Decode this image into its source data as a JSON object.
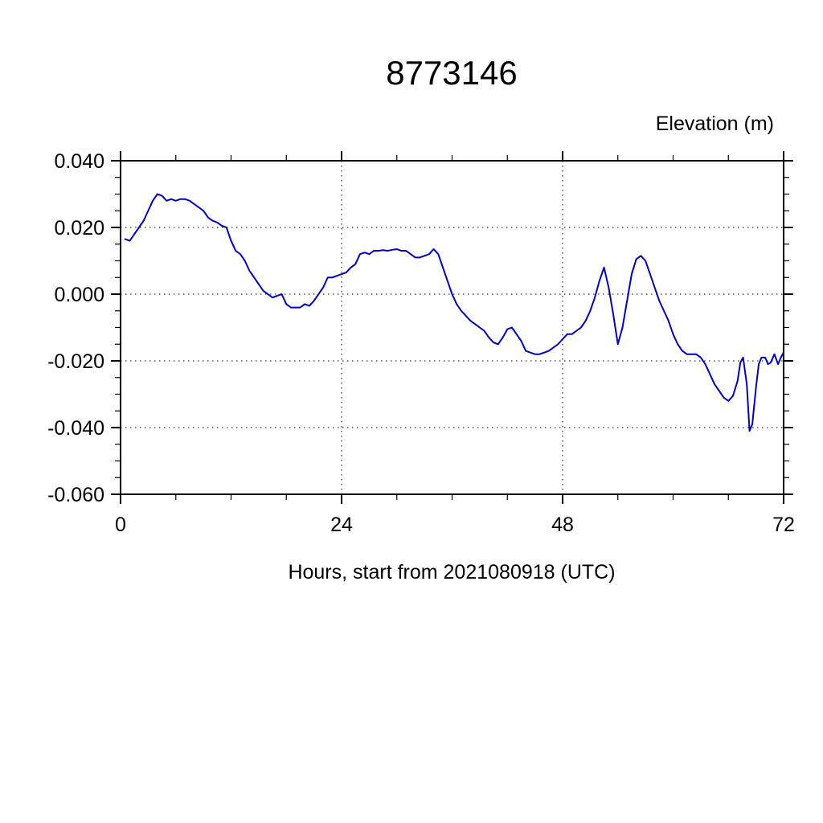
{
  "chart_data": {
    "type": "line",
    "title": "8773146",
    "ylabel": "Elevation (m)",
    "xlabel": "Hours, start from 2021080918 (UTC)",
    "xlim": [
      0,
      72
    ],
    "ylim": [
      -0.06,
      0.04
    ],
    "x_ticks": [
      0,
      24,
      48,
      72
    ],
    "x_tick_labels": [
      "0",
      "24",
      "48",
      "72"
    ],
    "y_ticks": [
      0.04,
      0.02,
      0.0,
      -0.02,
      -0.04,
      -0.06
    ],
    "y_tick_labels": [
      "0.040",
      "0.020",
      "0.000",
      "-0.020",
      "-0.040",
      "-0.060"
    ],
    "x_minor_step": 6,
    "y_minor_step": 0.005,
    "grid_x": [
      24,
      48
    ],
    "grid_y": [
      0.02,
      0.0,
      -0.02,
      -0.04
    ],
    "grid_on": true,
    "legend": "none",
    "line_color": "#0000bb",
    "series": [
      {
        "name": "elevation",
        "points": [
          [
            0.5,
            0.0165
          ],
          [
            1,
            0.016
          ],
          [
            1.5,
            0.018
          ],
          [
            2,
            0.02
          ],
          [
            2.5,
            0.022
          ],
          [
            3,
            0.025
          ],
          [
            3.5,
            0.028
          ],
          [
            4,
            0.03
          ],
          [
            4.5,
            0.0295
          ],
          [
            5,
            0.028
          ],
          [
            5.5,
            0.0285
          ],
          [
            6,
            0.028
          ],
          [
            6.5,
            0.0285
          ],
          [
            7,
            0.0285
          ],
          [
            7.5,
            0.028
          ],
          [
            8,
            0.027
          ],
          [
            8.5,
            0.026
          ],
          [
            9,
            0.025
          ],
          [
            9.5,
            0.023
          ],
          [
            10,
            0.022
          ],
          [
            10.5,
            0.0215
          ],
          [
            11,
            0.0205
          ],
          [
            11.5,
            0.02
          ],
          [
            12,
            0.016
          ],
          [
            12.5,
            0.013
          ],
          [
            13,
            0.012
          ],
          [
            13.5,
            0.01
          ],
          [
            14,
            0.007
          ],
          [
            14.5,
            0.005
          ],
          [
            15,
            0.003
          ],
          [
            15.5,
            0.001
          ],
          [
            16,
            0.0
          ],
          [
            16.5,
            -0.001
          ],
          [
            17,
            -0.0005
          ],
          [
            17.5,
            0.0
          ],
          [
            18,
            -0.003
          ],
          [
            18.5,
            -0.004
          ],
          [
            19,
            -0.004
          ],
          [
            19.5,
            -0.004
          ],
          [
            20,
            -0.003
          ],
          [
            20.5,
            -0.0035
          ],
          [
            21,
            -0.002
          ],
          [
            21.5,
            0.0
          ],
          [
            22,
            0.002
          ],
          [
            22.5,
            0.005
          ],
          [
            23,
            0.005
          ],
          [
            23.5,
            0.0055
          ],
          [
            24,
            0.006
          ],
          [
            24.5,
            0.0065
          ],
          [
            25,
            0.008
          ],
          [
            25.5,
            0.009
          ],
          [
            26,
            0.012
          ],
          [
            26.5,
            0.0125
          ],
          [
            27,
            0.012
          ],
          [
            27.5,
            0.013
          ],
          [
            28,
            0.013
          ],
          [
            28.5,
            0.0132
          ],
          [
            29,
            0.013
          ],
          [
            29.5,
            0.0133
          ],
          [
            30,
            0.0135
          ],
          [
            30.5,
            0.013
          ],
          [
            31,
            0.013
          ],
          [
            31.5,
            0.012
          ],
          [
            32,
            0.011
          ],
          [
            32.5,
            0.011
          ],
          [
            33,
            0.0115
          ],
          [
            33.5,
            0.012
          ],
          [
            34,
            0.0135
          ],
          [
            34.5,
            0.012
          ],
          [
            35,
            0.008
          ],
          [
            35.5,
            0.004
          ],
          [
            36,
            0.0
          ],
          [
            36.5,
            -0.003
          ],
          [
            37,
            -0.005
          ],
          [
            37.5,
            -0.0065
          ],
          [
            38,
            -0.008
          ],
          [
            38.5,
            -0.009
          ],
          [
            39,
            -0.01
          ],
          [
            39.5,
            -0.011
          ],
          [
            40,
            -0.013
          ],
          [
            40.5,
            -0.0145
          ],
          [
            41,
            -0.015
          ],
          [
            41.5,
            -0.013
          ],
          [
            42,
            -0.0105
          ],
          [
            42.5,
            -0.01
          ],
          [
            43,
            -0.012
          ],
          [
            43.5,
            -0.014
          ],
          [
            44,
            -0.017
          ],
          [
            44.5,
            -0.0175
          ],
          [
            45,
            -0.018
          ],
          [
            45.5,
            -0.018
          ],
          [
            46,
            -0.0175
          ],
          [
            46.5,
            -0.017
          ],
          [
            47,
            -0.016
          ],
          [
            47.5,
            -0.015
          ],
          [
            48,
            -0.0135
          ],
          [
            48.5,
            -0.012
          ],
          [
            49,
            -0.012
          ],
          [
            49.5,
            -0.011
          ],
          [
            50,
            -0.01
          ],
          [
            50.5,
            -0.008
          ],
          [
            51,
            -0.005
          ],
          [
            51.5,
            -0.001
          ],
          [
            52,
            0.004
          ],
          [
            52.5,
            0.008
          ],
          [
            53,
            0.002
          ],
          [
            53.5,
            -0.006
          ],
          [
            54,
            -0.015
          ],
          [
            54.5,
            -0.01
          ],
          [
            55,
            -0.002
          ],
          [
            55.5,
            0.006
          ],
          [
            56,
            0.0105
          ],
          [
            56.5,
            0.0115
          ],
          [
            57,
            0.01
          ],
          [
            57.5,
            0.006
          ],
          [
            58,
            0.002
          ],
          [
            58.5,
            -0.002
          ],
          [
            59,
            -0.005
          ],
          [
            59.5,
            -0.008
          ],
          [
            60,
            -0.012
          ],
          [
            60.5,
            -0.015
          ],
          [
            61,
            -0.017
          ],
          [
            61.5,
            -0.018
          ],
          [
            62,
            -0.018
          ],
          [
            62.5,
            -0.018
          ],
          [
            63,
            -0.019
          ],
          [
            63.5,
            -0.021
          ],
          [
            64,
            -0.024
          ],
          [
            64.5,
            -0.027
          ],
          [
            65,
            -0.029
          ],
          [
            65.5,
            -0.031
          ],
          [
            66,
            -0.032
          ],
          [
            66.5,
            -0.0305
          ],
          [
            67,
            -0.026
          ],
          [
            67.3,
            -0.0205
          ],
          [
            67.6,
            -0.019
          ],
          [
            68,
            -0.027
          ],
          [
            68.3,
            -0.041
          ],
          [
            68.6,
            -0.039
          ],
          [
            69,
            -0.028
          ],
          [
            69.3,
            -0.021
          ],
          [
            69.6,
            -0.019
          ],
          [
            70,
            -0.019
          ],
          [
            70.3,
            -0.021
          ],
          [
            70.6,
            -0.0205
          ],
          [
            71,
            -0.018
          ],
          [
            71.4,
            -0.021
          ],
          [
            71.7,
            -0.019
          ],
          [
            72,
            -0.0175
          ]
        ]
      }
    ]
  }
}
